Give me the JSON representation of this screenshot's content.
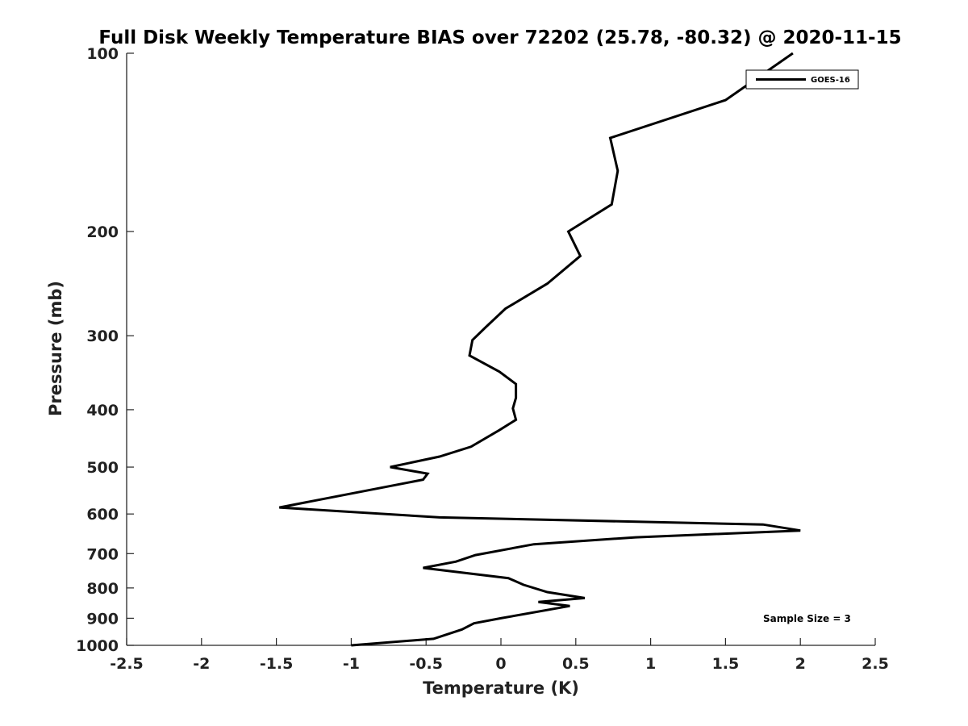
{
  "chart_data": {
    "type": "line",
    "title": "Full Disk Weekly Temperature BIAS over 72202 (25.78, -80.32) @ 2020-11-15",
    "xlabel": "Temperature (K)",
    "ylabel": "Pressure (mb)",
    "xlim": [
      -2.5,
      2.5
    ],
    "ylim": [
      1000,
      100
    ],
    "y_scale": "log",
    "x_ticks": [
      "-2.5",
      "-2",
      "-1.5",
      "-1",
      "-0.5",
      "0",
      "0.5",
      "1",
      "1.5",
      "2",
      "2.5"
    ],
    "y_ticks": [
      "100",
      "200",
      "300",
      "400",
      "500",
      "600",
      "700",
      "800",
      "900",
      "1000"
    ],
    "y_tick_values": [
      100,
      200,
      300,
      400,
      500,
      600,
      700,
      800,
      900,
      1000
    ],
    "legend_position": "top-right",
    "grid": false,
    "annotation": "Sample Size = 3",
    "series": [
      {
        "name": "GOES-16",
        "color": "#000000",
        "points": [
          {
            "x": 1.95,
            "p": 100
          },
          {
            "x": 1.5,
            "p": 120
          },
          {
            "x": 0.73,
            "p": 139
          },
          {
            "x": 0.78,
            "p": 158
          },
          {
            "x": 0.74,
            "p": 180
          },
          {
            "x": 0.45,
            "p": 200
          },
          {
            "x": 0.53,
            "p": 220
          },
          {
            "x": 0.31,
            "p": 245
          },
          {
            "x": 0.03,
            "p": 270
          },
          {
            "x": -0.1,
            "p": 290
          },
          {
            "x": -0.19,
            "p": 305
          },
          {
            "x": -0.21,
            "p": 324
          },
          {
            "x": -0.01,
            "p": 345
          },
          {
            "x": 0.1,
            "p": 362
          },
          {
            "x": 0.1,
            "p": 382
          },
          {
            "x": 0.08,
            "p": 398
          },
          {
            "x": 0.1,
            "p": 416
          },
          {
            "x": -0.01,
            "p": 433
          },
          {
            "x": -0.2,
            "p": 462
          },
          {
            "x": -0.41,
            "p": 480
          },
          {
            "x": -0.74,
            "p": 500
          },
          {
            "x": -0.49,
            "p": 513
          },
          {
            "x": -0.52,
            "p": 525
          },
          {
            "x": -1.48,
            "p": 585
          },
          {
            "x": -0.41,
            "p": 608
          },
          {
            "x": 1.75,
            "p": 625
          },
          {
            "x": 2.0,
            "p": 640
          },
          {
            "x": 0.9,
            "p": 657
          },
          {
            "x": 0.22,
            "p": 675
          },
          {
            "x": -0.17,
            "p": 704
          },
          {
            "x": -0.3,
            "p": 722
          },
          {
            "x": -0.52,
            "p": 740
          },
          {
            "x": 0.05,
            "p": 770
          },
          {
            "x": 0.15,
            "p": 790
          },
          {
            "x": 0.31,
            "p": 813
          },
          {
            "x": 0.56,
            "p": 832
          },
          {
            "x": 0.25,
            "p": 845
          },
          {
            "x": 0.46,
            "p": 858
          },
          {
            "x": 0.0,
            "p": 900
          },
          {
            "x": -0.18,
            "p": 918
          },
          {
            "x": -0.26,
            "p": 940
          },
          {
            "x": -0.45,
            "p": 975
          },
          {
            "x": -1.0,
            "p": 1000
          }
        ]
      }
    ]
  }
}
